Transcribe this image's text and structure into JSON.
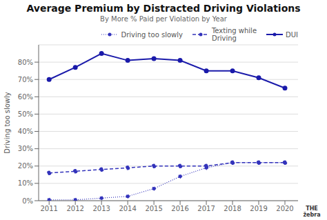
{
  "chart_data": {
    "type": "line",
    "title": "Average Premium by Distracted Driving Violations",
    "subtitle": "By More % Paid per Violation by Year",
    "ylabel": "Driving too slowly",
    "x": [
      2011,
      2012,
      2013,
      2014,
      2015,
      2016,
      2017,
      2018,
      2019,
      2020
    ],
    "series": [
      {
        "name": "Driving too slowly",
        "color": "#3333bb",
        "line_style": "dotted",
        "marker": "circle",
        "values": [
          0.5,
          0.5,
          1.5,
          2.5,
          7,
          14,
          19,
          22,
          22,
          22
        ]
      },
      {
        "name": "Texting while\nDriving",
        "color": "#3333bb",
        "line_style": "dashed",
        "marker": "circle",
        "values": [
          16,
          17,
          18,
          19,
          20,
          20,
          20,
          22,
          22,
          22
        ]
      },
      {
        "name": "DUI",
        "color": "#1a1aaa",
        "line_style": "solid",
        "marker": "circle",
        "values": [
          70,
          77,
          85,
          81,
          82,
          81,
          75,
          75,
          71,
          65
        ]
      }
    ],
    "xlim": [
      2010.6,
      2020.5
    ],
    "xticks": [
      2011,
      2012,
      2013,
      2014,
      2015,
      2016,
      2017,
      2018,
      2019,
      2020
    ],
    "ylim": [
      0,
      90
    ],
    "yticks": [
      {
        "value": 0,
        "label": "0%"
      },
      {
        "value": 10,
        "label": "10%"
      },
      {
        "value": 20,
        "label": "20%"
      },
      {
        "value": 30,
        "label": "30%"
      },
      {
        "value": 40,
        "label": "40%"
      },
      {
        "value": 50,
        "label": "50%"
      },
      {
        "value": 60,
        "label": "60%"
      },
      {
        "value": 70,
        "label": "70%"
      },
      {
        "value": 80,
        "label": "80%"
      }
    ],
    "grid": true,
    "legend": "upper right",
    "annotations": [
      "THE\nžebra"
    ]
  }
}
